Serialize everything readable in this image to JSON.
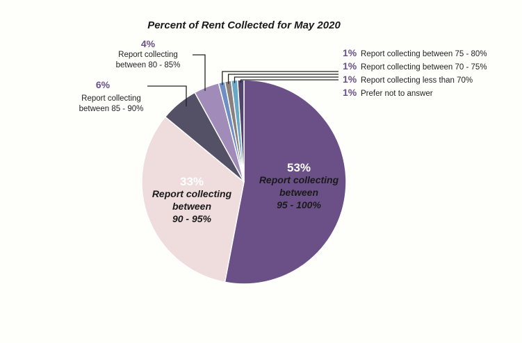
{
  "chart_data": {
    "type": "pie",
    "title": "Percent of Rent Collected for May 2020",
    "start": "12 o'clock",
    "direction": "clockwise",
    "slices": [
      {
        "value": 53,
        "pct": "53%",
        "lines": [
          "Report collecting",
          "between",
          "95 - 100%"
        ],
        "color": "#6b5088",
        "pct_color": "#ffffff"
      },
      {
        "value": 33,
        "pct": "33%",
        "lines": [
          "Report collecting",
          "between",
          "90 - 95%"
        ],
        "color": "#efdcdc",
        "pct_color": "#ffffff"
      },
      {
        "value": 6,
        "pct": "6%",
        "lines": [
          "Report collecting",
          "between 85 - 90%"
        ],
        "color": "#545166"
      },
      {
        "value": 4,
        "pct": "4%",
        "lines": [
          "Report collecting",
          "between 80 - 85%"
        ],
        "color": "#a08bb9"
      },
      {
        "value": 1,
        "pct": "1%",
        "lines": [
          "Report collecting between 75 - 80%"
        ],
        "color": "#6e8ec4"
      },
      {
        "value": 1,
        "pct": "1%",
        "lines": [
          "Report collecting between 70 - 75%"
        ],
        "color": "#8a7f7f"
      },
      {
        "value": 1,
        "pct": "1%",
        "lines": [
          "Report collecting less than 70%"
        ],
        "color": "#68a7c5"
      },
      {
        "value": 1,
        "pct": "1%",
        "lines": [
          "Prefer not to answer"
        ],
        "color": "#52446a"
      }
    ]
  }
}
